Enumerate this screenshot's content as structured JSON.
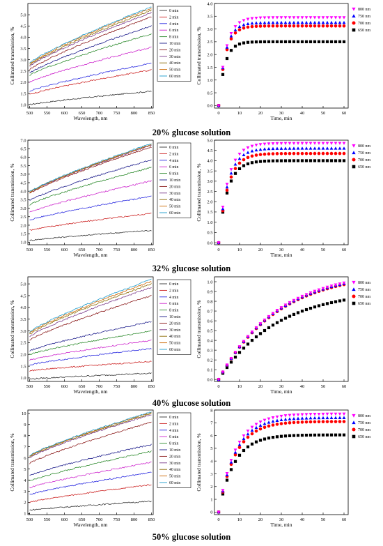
{
  "colors": {
    "spectra": [
      "#333333",
      "#cc2222",
      "#2a2ae0",
      "#cc22cc",
      "#2e8b2e",
      "#1a1a8a",
      "#8b1a1a",
      "#7a3a8a",
      "#8a6a00",
      "#cc6600",
      "#1a9acc"
    ],
    "kinetic": {
      "800 nm": "#ff00ff",
      "750 nm": "#0000ff",
      "700 nm": "#ff0000",
      "650 nm": "#000000"
    }
  },
  "panels": [
    {
      "caption": "20% glucose solution",
      "spectra": {
        "type": "line",
        "xlabel": "Wavelength, nm",
        "ylabel": "Collimated transmission, %",
        "xlim": [
          495,
          855
        ],
        "ylim": [
          0.85,
          5.5
        ],
        "xticks": [
          500,
          550,
          600,
          650,
          700,
          750,
          800,
          850
        ],
        "yticks": [
          1.0,
          1.5,
          2.0,
          2.5,
          3.0,
          3.5,
          4.0,
          4.5,
          5.0
        ],
        "ytick_labels": [
          "1.0",
          "1.5",
          "2.0",
          "2.5",
          "3.0",
          "3.5",
          "4.0",
          "4.5",
          "5.0"
        ],
        "x": [
          500,
          850
        ],
        "series": [
          {
            "name": "0 min",
            "start": 1.0,
            "end": 1.6
          },
          {
            "name": "2 min",
            "start": 1.45,
            "end": 2.55
          },
          {
            "name": "4 min",
            "start": 1.6,
            "end": 2.85
          },
          {
            "name": "6 min",
            "start": 2.0,
            "end": 3.55
          },
          {
            "name": "8 min",
            "start": 2.3,
            "end": 4.15
          },
          {
            "name": "10 min",
            "start": 2.4,
            "end": 4.5
          },
          {
            "name": "20 min",
            "start": 2.55,
            "end": 4.9
          },
          {
            "name": "30 min",
            "start": 2.7,
            "end": 5.1
          },
          {
            "name": "40 min",
            "start": 2.75,
            "end": 5.2
          },
          {
            "name": "50 min",
            "start": 2.8,
            "end": 5.3
          },
          {
            "name": "60 min",
            "start": 2.85,
            "end": 5.35
          }
        ]
      },
      "kinetics": {
        "type": "scatter",
        "xlabel": "Time, min",
        "ylabel": "Collimated transmission, %",
        "xlim": [
          -2,
          62
        ],
        "ylim": [
          -0.1,
          4.0
        ],
        "xticks": [
          0,
          10,
          20,
          30,
          40,
          50,
          60
        ],
        "yticks": [
          0.0,
          0.5,
          1.0,
          1.5,
          2.0,
          2.5,
          3.0,
          3.5,
          4.0
        ],
        "ytick_labels": [
          "0.0",
          "0.5",
          "1.0",
          "1.5",
          "2.0",
          "2.5",
          "3.0",
          "3.5",
          "4.0"
        ],
        "x": [
          0,
          2,
          4,
          6,
          8,
          10,
          12,
          14,
          16,
          18,
          20,
          22,
          24,
          26,
          28,
          30,
          32,
          34,
          36,
          38,
          40,
          42,
          44,
          46,
          48,
          50,
          52,
          54,
          56,
          58,
          60
        ],
        "series": [
          {
            "name": "800 nm",
            "marker": "tri-down",
            "final": 3.45,
            "tau": 3.5
          },
          {
            "name": "750 nm",
            "marker": "tri-up",
            "final": 3.25,
            "tau": 3.3
          },
          {
            "name": "700 nm",
            "marker": "circle",
            "final": 3.12,
            "tau": 3.3
          },
          {
            "name": "650 nm",
            "marker": "square",
            "final": 2.5,
            "tau": 3.0
          }
        ]
      }
    },
    {
      "caption": "32% glucose solution",
      "spectra": {
        "type": "line",
        "xlabel": "Wavelength, nm",
        "ylabel": "Collimated transmission, %",
        "xlim": [
          495,
          855
        ],
        "ylim": [
          0.85,
          7.0
        ],
        "xticks": [
          500,
          550,
          600,
          650,
          700,
          750,
          800,
          850
        ],
        "yticks": [
          1.0,
          1.5,
          2.0,
          2.5,
          3.0,
          3.5,
          4.0,
          4.5,
          5.0,
          5.5,
          6.0,
          6.5,
          7.0
        ],
        "ytick_labels": [
          "1.0",
          "1.5",
          "2.0",
          "2.5",
          "3.0",
          "3.5",
          "4.0",
          "4.5",
          "5.0",
          "5.5",
          "6.0",
          "6.5",
          "7.0"
        ],
        "x": [
          500,
          850
        ],
        "series": [
          {
            "name": "0 min",
            "start": 1.1,
            "end": 1.7
          },
          {
            "name": "2 min",
            "start": 1.7,
            "end": 2.7
          },
          {
            "name": "4 min",
            "start": 2.3,
            "end": 3.7
          },
          {
            "name": "6 min",
            "start": 2.75,
            "end": 4.6
          },
          {
            "name": "8 min",
            "start": 3.2,
            "end": 5.4
          },
          {
            "name": "10 min",
            "start": 3.45,
            "end": 5.85
          },
          {
            "name": "20 min",
            "start": 3.85,
            "end": 6.6
          },
          {
            "name": "30 min",
            "start": 3.9,
            "end": 6.7
          },
          {
            "name": "40 min",
            "start": 3.9,
            "end": 6.75
          },
          {
            "name": "50 min",
            "start": 3.92,
            "end": 6.75
          },
          {
            "name": "60 min",
            "start": 3.95,
            "end": 6.8
          }
        ]
      },
      "kinetics": {
        "type": "scatter",
        "xlabel": "Time, min",
        "ylabel": "Collimated transmission, %",
        "xlim": [
          -2,
          62
        ],
        "ylim": [
          -0.1,
          5.0
        ],
        "xticks": [
          0,
          10,
          20,
          30,
          40,
          50,
          60
        ],
        "yticks": [
          0.0,
          0.5,
          1.0,
          1.5,
          2.0,
          2.5,
          3.0,
          3.5,
          4.0,
          4.5,
          5.0
        ],
        "ytick_labels": [
          "0.0",
          "0.5",
          "1.0",
          "1.5",
          "2.0",
          "2.5",
          "3.0",
          "3.5",
          "4.0",
          "4.5",
          "5.0"
        ],
        "x": [
          0,
          2,
          4,
          6,
          8,
          10,
          12,
          14,
          16,
          18,
          20,
          22,
          24,
          26,
          28,
          30,
          32,
          34,
          36,
          38,
          40,
          42,
          44,
          46,
          48,
          50,
          52,
          54,
          56,
          58,
          60
        ],
        "series": [
          {
            "name": "800 nm",
            "marker": "tri-down",
            "final": 4.85,
            "tau": 4.5
          },
          {
            "name": "750 nm",
            "marker": "tri-up",
            "final": 4.6,
            "tau": 4.5
          },
          {
            "name": "700 nm",
            "marker": "circle",
            "final": 4.35,
            "tau": 4.5
          },
          {
            "name": "650 nm",
            "marker": "square",
            "final": 4.0,
            "tau": 4.3
          }
        ]
      }
    },
    {
      "caption": "40% glucose solution",
      "spectra": {
        "type": "line",
        "xlabel": "Wavelength, nm",
        "ylabel": "Collimated transmission, %",
        "xlim": [
          495,
          855
        ],
        "ylim": [
          0.85,
          5.3
        ],
        "xticks": [
          500,
          550,
          600,
          650,
          700,
          750,
          800,
          850
        ],
        "yticks": [
          1.0,
          1.5,
          2.0,
          2.5,
          3.0,
          3.5,
          4.0,
          4.5,
          5.0
        ],
        "ytick_labels": [
          "1.0",
          "1.5",
          "2.0",
          "2.5",
          "3.0",
          "3.5",
          "4.0",
          "4.5",
          "5.0"
        ],
        "x": [
          500,
          850
        ],
        "series": [
          {
            "name": "0 min",
            "start": 0.95,
            "end": 1.2
          },
          {
            "name": "2 min",
            "start": 1.3,
            "end": 1.7
          },
          {
            "name": "4 min",
            "start": 1.55,
            "end": 2.25
          },
          {
            "name": "6 min",
            "start": 1.75,
            "end": 2.6
          },
          {
            "name": "8 min",
            "start": 2.0,
            "end": 3.0
          },
          {
            "name": "10 min",
            "start": 2.15,
            "end": 3.4
          },
          {
            "name": "20 min",
            "start": 2.6,
            "end": 4.5
          },
          {
            "name": "30 min",
            "start": 2.75,
            "end": 4.85
          },
          {
            "name": "40 min",
            "start": 2.85,
            "end": 5.0
          },
          {
            "name": "50 min",
            "start": 2.9,
            "end": 5.1
          },
          {
            "name": "60 min",
            "start": 2.95,
            "end": 5.2
          }
        ]
      },
      "kinetics": {
        "type": "scatter",
        "xlabel": "Time, min",
        "ylabel": "Collimated transmission, %",
        "xlim": [
          -2,
          62
        ],
        "ylim": [
          -0.02,
          1.05
        ],
        "xticks": [
          0,
          10,
          20,
          30,
          40,
          50,
          60
        ],
        "yticks": [
          0.0,
          0.1,
          0.2,
          0.3,
          0.4,
          0.5,
          0.6,
          0.7,
          0.8,
          0.9,
          1.0
        ],
        "ytick_labels": [
          "0.0",
          "0.1",
          "0.2",
          "0.3",
          "0.4",
          "0.5",
          "0.6",
          "0.7",
          "0.8",
          "0.9",
          "1.0"
        ],
        "x": [
          0,
          2,
          4,
          6,
          8,
          10,
          12,
          14,
          16,
          18,
          20,
          22,
          24,
          26,
          28,
          30,
          32,
          34,
          36,
          38,
          40,
          42,
          44,
          46,
          48,
          50,
          52,
          54,
          56,
          58,
          60
        ],
        "series": [
          {
            "name": "800 nm",
            "marker": "tri-down",
            "final": 1.12,
            "tau": 28
          },
          {
            "name": "750 nm",
            "marker": "tri-up",
            "final": 1.11,
            "tau": 28
          },
          {
            "name": "700 nm",
            "marker": "circle",
            "final": 1.1,
            "tau": 28
          },
          {
            "name": "650 nm",
            "marker": "square",
            "final": 0.92,
            "tau": 28
          }
        ]
      }
    },
    {
      "caption": "50% glucose solution",
      "spectra": {
        "type": "line",
        "xlabel": "Wavelength, nm",
        "ylabel": "Collimated transmission, %",
        "xlim": [
          495,
          855
        ],
        "ylim": [
          0.9,
          10.3
        ],
        "xticks": [
          500,
          550,
          600,
          650,
          700,
          750,
          800,
          850
        ],
        "yticks": [
          1,
          2,
          3,
          4,
          5,
          6,
          7,
          8,
          9,
          10
        ],
        "ytick_labels": [
          "1",
          "2",
          "3",
          "4",
          "5",
          "6",
          "7",
          "8",
          "9",
          "10"
        ],
        "x": [
          500,
          850
        ],
        "series": [
          {
            "name": "0 min",
            "start": 1.3,
            "end": 2.1
          },
          {
            "name": "2 min",
            "start": 2.0,
            "end": 3.6
          },
          {
            "name": "4 min",
            "start": 2.7,
            "end": 4.7
          },
          {
            "name": "6 min",
            "start": 3.3,
            "end": 5.6
          },
          {
            "name": "8 min",
            "start": 3.9,
            "end": 6.6
          },
          {
            "name": "10 min",
            "start": 4.4,
            "end": 7.2
          },
          {
            "name": "20 min",
            "start": 5.5,
            "end": 9.2
          },
          {
            "name": "30 min",
            "start": 6.0,
            "end": 9.9
          },
          {
            "name": "40 min",
            "start": 6.1,
            "end": 10.0
          },
          {
            "name": "50 min",
            "start": 6.15,
            "end": 10.1
          },
          {
            "name": "60 min",
            "start": 6.2,
            "end": 10.15
          }
        ]
      },
      "kinetics": {
        "type": "scatter",
        "xlabel": "Time, min",
        "ylabel": "Collimated transmission, %",
        "xlim": [
          -2,
          62
        ],
        "ylim": [
          -0.2,
          8.0
        ],
        "xticks": [
          0,
          10,
          20,
          30,
          40,
          50,
          60
        ],
        "yticks": [
          0,
          1,
          2,
          3,
          4,
          5,
          6,
          7,
          8
        ],
        "ytick_labels": [
          "0",
          "1",
          "2",
          "3",
          "4",
          "5",
          "6",
          "7",
          "8"
        ],
        "x": [
          0,
          2,
          4,
          6,
          8,
          10,
          12,
          14,
          16,
          18,
          20,
          22,
          24,
          26,
          28,
          30,
          32,
          34,
          36,
          38,
          40,
          42,
          44,
          46,
          48,
          50,
          52,
          54,
          56,
          58,
          60
        ],
        "series": [
          {
            "name": "800 nm",
            "marker": "tri-down",
            "final": 7.7,
            "tau": 8
          },
          {
            "name": "750 nm",
            "marker": "tri-up",
            "final": 7.4,
            "tau": 8
          },
          {
            "name": "700 nm",
            "marker": "circle",
            "final": 7.1,
            "tau": 8
          },
          {
            "name": "650 nm",
            "marker": "square",
            "final": 6.05,
            "tau": 7.5
          }
        ]
      }
    }
  ]
}
